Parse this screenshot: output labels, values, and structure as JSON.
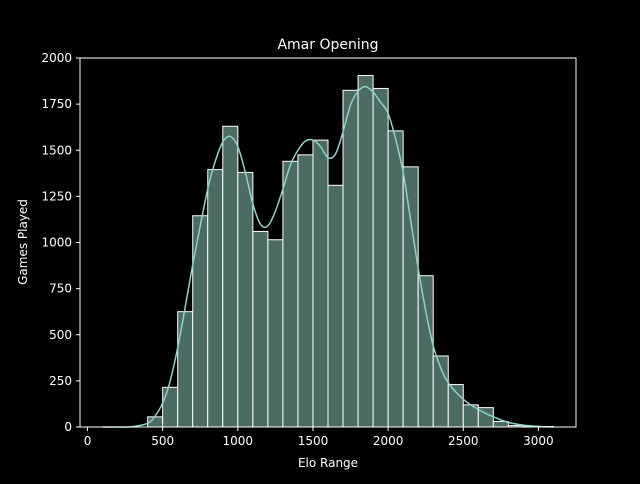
{
  "chart_data": {
    "type": "bar",
    "title": "Amar Opening",
    "xlabel": "Elo Range",
    "ylabel": "Games Played",
    "xlim": [
      -50,
      3250
    ],
    "ylim": [
      0,
      2000
    ],
    "x_ticks": [
      0,
      500,
      1000,
      1500,
      2000,
      2500,
      3000
    ],
    "y_ticks": [
      0,
      250,
      500,
      750,
      1000,
      1250,
      1500,
      1750,
      2000
    ],
    "bin_width": 100,
    "bins": [
      {
        "x0": 400,
        "x1": 500,
        "count": 55
      },
      {
        "x0": 500,
        "x1": 600,
        "count": 215
      },
      {
        "x0": 600,
        "x1": 700,
        "count": 625
      },
      {
        "x0": 700,
        "x1": 800,
        "count": 1145
      },
      {
        "x0": 800,
        "x1": 900,
        "count": 1395
      },
      {
        "x0": 900,
        "x1": 1000,
        "count": 1630
      },
      {
        "x0": 1000,
        "x1": 1100,
        "count": 1380
      },
      {
        "x0": 1100,
        "x1": 1200,
        "count": 1060
      },
      {
        "x0": 1200,
        "x1": 1300,
        "count": 1015
      },
      {
        "x0": 1300,
        "x1": 1400,
        "count": 1440
      },
      {
        "x0": 1400,
        "x1": 1500,
        "count": 1475
      },
      {
        "x0": 1500,
        "x1": 1600,
        "count": 1555
      },
      {
        "x0": 1600,
        "x1": 1700,
        "count": 1310
      },
      {
        "x0": 1700,
        "x1": 1800,
        "count": 1825
      },
      {
        "x0": 1800,
        "x1": 1900,
        "count": 1905
      },
      {
        "x0": 1900,
        "x1": 2000,
        "count": 1835
      },
      {
        "x0": 2000,
        "x1": 2100,
        "count": 1605
      },
      {
        "x0": 2100,
        "x1": 2200,
        "count": 1410
      },
      {
        "x0": 2200,
        "x1": 2300,
        "count": 820
      },
      {
        "x0": 2300,
        "x1": 2400,
        "count": 385
      },
      {
        "x0": 2400,
        "x1": 2500,
        "count": 230
      },
      {
        "x0": 2500,
        "x1": 2600,
        "count": 120
      },
      {
        "x0": 2600,
        "x1": 2700,
        "count": 105
      },
      {
        "x0": 2700,
        "x1": 2800,
        "count": 30
      },
      {
        "x0": 2800,
        "x1": 2900,
        "count": 8
      },
      {
        "x0": 2900,
        "x1": 3000,
        "count": 5
      },
      {
        "x0": 3000,
        "x1": 3100,
        "count": 3
      }
    ],
    "kde": {
      "x": [
        100,
        200,
        300,
        400,
        450,
        500,
        550,
        600,
        650,
        700,
        750,
        800,
        850,
        900,
        950,
        1000,
        1050,
        1100,
        1150,
        1200,
        1250,
        1300,
        1350,
        1400,
        1450,
        1500,
        1550,
        1600,
        1650,
        1700,
        1750,
        1800,
        1850,
        1900,
        1950,
        2000,
        2050,
        2100,
        2150,
        2200,
        2250,
        2300,
        2350,
        2400,
        2500,
        2600,
        2700,
        2800,
        2900,
        3000,
        3100
      ],
      "y": [
        0,
        0,
        2,
        20,
        60,
        130,
        250,
        430,
        650,
        880,
        1090,
        1290,
        1440,
        1545,
        1575,
        1520,
        1380,
        1210,
        1100,
        1090,
        1170,
        1290,
        1420,
        1500,
        1550,
        1555,
        1520,
        1460,
        1480,
        1600,
        1745,
        1820,
        1845,
        1815,
        1760,
        1700,
        1560,
        1380,
        1120,
        860,
        630,
        440,
        320,
        240,
        150,
        95,
        55,
        25,
        10,
        3,
        0
      ]
    },
    "grid": false,
    "colors": {
      "background": "#000000",
      "bar_fill": "#4b6b63",
      "bar_edge": "#ffffff",
      "kde_line": "#8dd3c7",
      "axis": "#ffffff",
      "text": "#ffffff"
    }
  }
}
